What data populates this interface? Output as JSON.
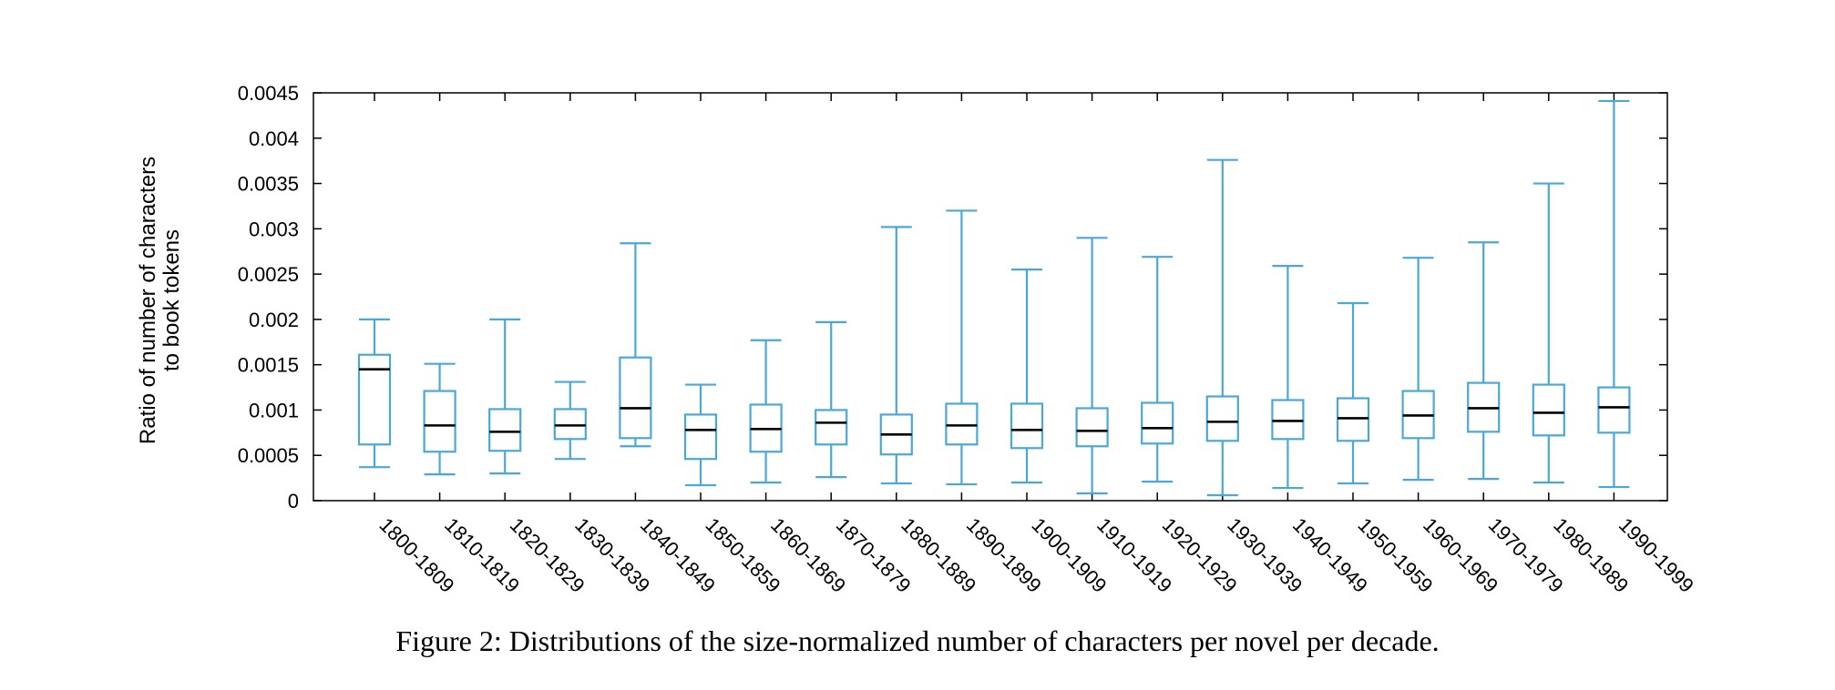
{
  "caption": "Figure 2: Distributions of the size-normalized number of characters per novel per decade.",
  "chart_data": {
    "type": "boxplot",
    "ylabel_line1": "Ratio of number of characters",
    "ylabel_line2": "to book tokens",
    "ylim": [
      0,
      0.0045
    ],
    "yticks": [
      0,
      0.0005,
      0.001,
      0.0015,
      0.002,
      0.0025,
      0.003,
      0.0035,
      0.004,
      0.0045
    ],
    "ytick_labels": [
      "0",
      "0.0005",
      "0.001",
      "0.0015",
      "0.002",
      "0.0025",
      "0.003",
      "0.0035",
      "0.004",
      "0.0045"
    ],
    "grid": false,
    "box_color": "#4aa8d8",
    "median_color": "#000000",
    "categories": [
      "1800-1809",
      "1810-1819",
      "1820-1829",
      "1830-1839",
      "1840-1849",
      "1850-1859",
      "1860-1869",
      "1870-1879",
      "1880-1889",
      "1890-1899",
      "1900-1909",
      "1910-1919",
      "1920-1929",
      "1930-1939",
      "1940-1949",
      "1950-1959",
      "1960-1969",
      "1970-1979",
      "1980-1989",
      "1990-1999"
    ],
    "whisker_low": [
      0.00037,
      0.00029,
      0.0003,
      0.00046,
      0.0006,
      0.00017,
      0.0002,
      0.00026,
      0.00019,
      0.00018,
      0.0002,
      8e-05,
      0.00021,
      6e-05,
      0.00014,
      0.00019,
      0.00023,
      0.00024,
      0.0002,
      0.00015
    ],
    "q1": [
      0.00062,
      0.00054,
      0.00055,
      0.00068,
      0.00069,
      0.00046,
      0.00054,
      0.00062,
      0.00051,
      0.00062,
      0.00058,
      0.0006,
      0.00063,
      0.00066,
      0.00068,
      0.00066,
      0.00069,
      0.00076,
      0.00072,
      0.00075
    ],
    "median": [
      0.00145,
      0.00083,
      0.00076,
      0.00083,
      0.00102,
      0.00078,
      0.00079,
      0.00086,
      0.00073,
      0.00083,
      0.00078,
      0.00077,
      0.0008,
      0.00087,
      0.00088,
      0.00091,
      0.00094,
      0.00102,
      0.00097,
      0.00103
    ],
    "q3": [
      0.00161,
      0.00121,
      0.00101,
      0.00101,
      0.00158,
      0.00095,
      0.00106,
      0.001,
      0.00095,
      0.00107,
      0.00107,
      0.00102,
      0.00108,
      0.00115,
      0.00111,
      0.00113,
      0.00121,
      0.0013,
      0.00128,
      0.00125
    ],
    "whisker_high": [
      0.002,
      0.00151,
      0.002,
      0.00131,
      0.00284,
      0.00128,
      0.00177,
      0.00197,
      0.00302,
      0.0032,
      0.00255,
      0.0029,
      0.00269,
      0.00376,
      0.00259,
      0.00218,
      0.00268,
      0.00285,
      0.0035,
      0.00441
    ]
  }
}
